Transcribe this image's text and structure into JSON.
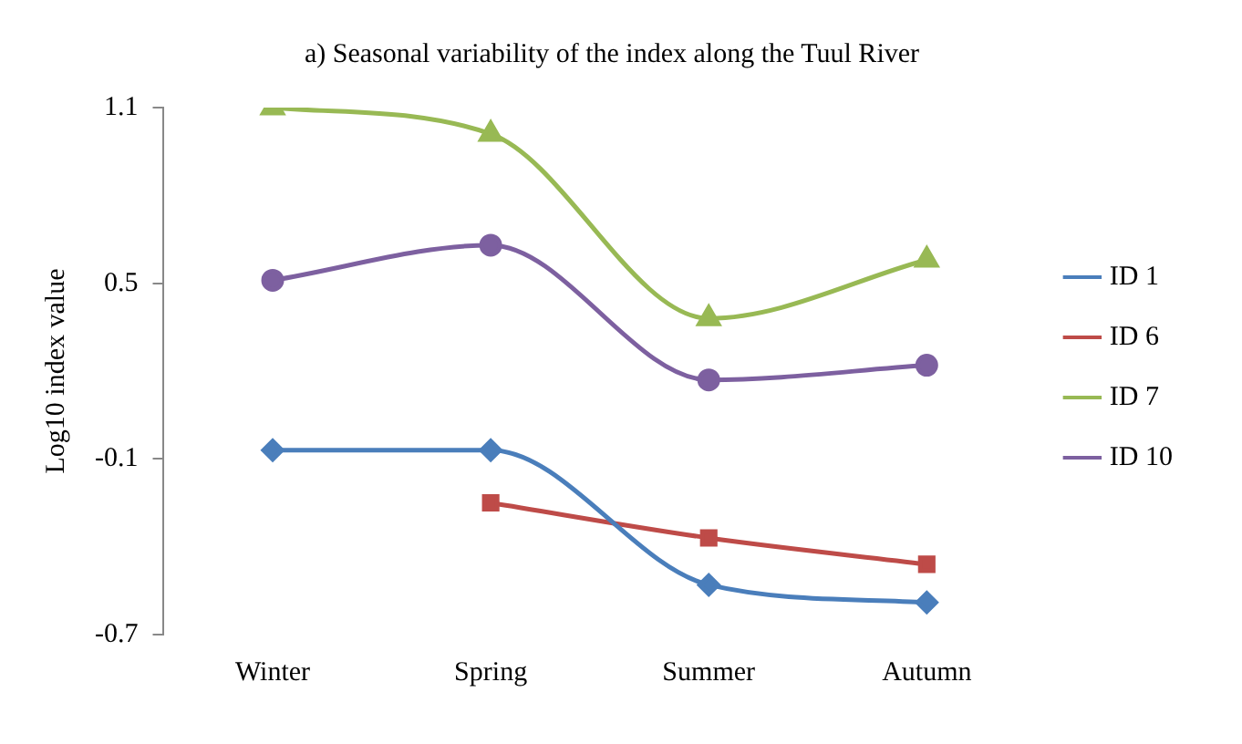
{
  "chart_data": {
    "type": "line",
    "title": "a) Seasonal variability of the index along the Tuul River",
    "ylabel": "Log10 index value",
    "categories": [
      "Winter",
      "Spring",
      "Summer",
      "Autumn"
    ],
    "ylim": [
      -0.7,
      1.1
    ],
    "yticks": [
      {
        "value": -0.7,
        "label": "-0.7"
      },
      {
        "value": -0.1,
        "label": "-0.1"
      },
      {
        "value": 0.5,
        "label": "0.5"
      },
      {
        "value": 1.1,
        "label": "1.1"
      }
    ],
    "grid": false,
    "legend": "right",
    "line_style": "solid",
    "series": [
      {
        "name": "ID 1",
        "color": "#4a7ebb",
        "marker": "diamond",
        "values": [
          -0.07,
          -0.07,
          -0.53,
          -0.59
        ]
      },
      {
        "name": "ID 6",
        "color": "#be4b48",
        "marker": "square",
        "values": [
          null,
          -0.25,
          -0.37,
          -0.46
        ]
      },
      {
        "name": "ID 7",
        "color": "#98b954",
        "marker": "triangle",
        "values": [
          1.1,
          1.01,
          0.38,
          0.58
        ]
      },
      {
        "name": "ID 10",
        "color": "#7d60a0",
        "marker": "circle",
        "values": [
          0.51,
          0.63,
          0.17,
          0.22
        ]
      }
    ]
  }
}
